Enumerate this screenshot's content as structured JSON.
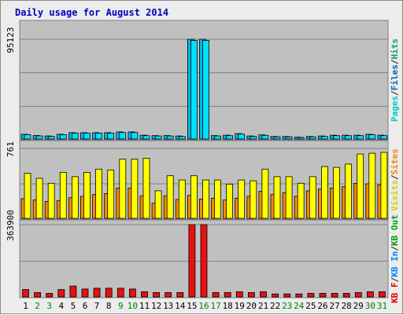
{
  "chart_data": {
    "type": "bar",
    "title": "Daily usage for August 2014",
    "categories": [
      "1",
      "2",
      "3",
      "4",
      "5",
      "6",
      "7",
      "8",
      "9",
      "10",
      "11",
      "12",
      "13",
      "14",
      "15",
      "16",
      "17",
      "18",
      "19",
      "20",
      "21",
      "22",
      "23",
      "24",
      "25",
      "26",
      "27",
      "28",
      "29",
      "30",
      "31"
    ],
    "weekend_days": [
      "2",
      "3",
      "9",
      "10",
      "16",
      "17",
      "23",
      "24",
      "30",
      "31"
    ],
    "panels": [
      {
        "name": "hits-files-pages",
        "ymax_label": "95123",
        "ymax": 95123,
        "legend": [
          {
            "text": "Pages",
            "color": "#00c8c8"
          },
          {
            "text": "/",
            "color": "#202020"
          },
          {
            "text": "Files",
            "color": "#0060c0"
          },
          {
            "text": "/",
            "color": "#202020"
          },
          {
            "text": "Hits",
            "color": "#00a070"
          }
        ],
        "series": [
          {
            "color": "#00b8e8",
            "values": [
              4600,
              3400,
              2900,
              4600,
              6100,
              6100,
              6100,
              6100,
              6800,
              6800,
              3700,
              3300,
              3300,
              2900,
              95123,
              95123,
              3300,
              3700,
              5200,
              2900,
              4000,
              2500,
              2500,
              1800,
              2500,
              2900,
              3700,
              3700,
              3700,
              4600,
              3700
            ]
          },
          {
            "color": "#00e0ff",
            "values": [
              4100,
              3000,
              2500,
              4100,
              5600,
              5600,
              5600,
              5600,
              6200,
              6200,
              3200,
              2900,
              2900,
              2500,
              94000,
              94000,
              2900,
              3200,
              4700,
              2500,
              3500,
              2100,
              2100,
              1500,
              2100,
              2500,
              3200,
              3200,
              3200,
              4100,
              3200
            ]
          }
        ]
      },
      {
        "name": "visits-sites",
        "ymax_label": "761",
        "ymax": 761,
        "legend": [
          {
            "text": "Visits",
            "color": "#d0d000"
          },
          {
            "text": "/",
            "color": "#202020"
          },
          {
            "text": "Sites",
            "color": "#ff8000"
          }
        ],
        "series": [
          {
            "color": "#ff8c00",
            "values": [
              215,
              200,
              185,
              195,
              225,
              240,
              260,
              270,
              330,
              330,
              245,
              165,
              245,
              205,
              250,
              210,
              220,
              200,
              220,
              240,
              295,
              260,
              280,
              240,
              300,
              320,
              330,
              345,
              380,
              375,
              365
            ]
          },
          {
            "color": "#ffff00",
            "values": [
              491,
              436,
              382,
              500,
              454,
              500,
              536,
              527,
              645,
              645,
              654,
              300,
              464,
              418,
              464,
              418,
              418,
              373,
              418,
              409,
              536,
              454,
              454,
              382,
              454,
              564,
              555,
              591,
              700,
              709,
              718
            ]
          }
        ]
      },
      {
        "name": "kbytes",
        "ymax_label": "363900",
        "ymax": 363900,
        "legend": [
          {
            "text": "KB F",
            "color": "#e00000"
          },
          {
            "text": "/",
            "color": "#202020"
          },
          {
            "text": "KB In",
            "color": "#0080ff"
          },
          {
            "text": "/",
            "color": "#202020"
          },
          {
            "text": "KB Out",
            "color": "#00a000"
          }
        ],
        "series": [
          {
            "color": "#e81010",
            "values": [
              37000,
              22000,
              18000,
              37000,
              55000,
              40000,
              44000,
              44000,
              44000,
              40000,
              26000,
              22000,
              22000,
              22000,
              363900,
              363900,
              22000,
              22000,
              26000,
              22000,
              26000,
              15000,
              15000,
              15000,
              18000,
              18000,
              18000,
              18000,
              22000,
              26000,
              26000
            ]
          }
        ]
      }
    ]
  }
}
